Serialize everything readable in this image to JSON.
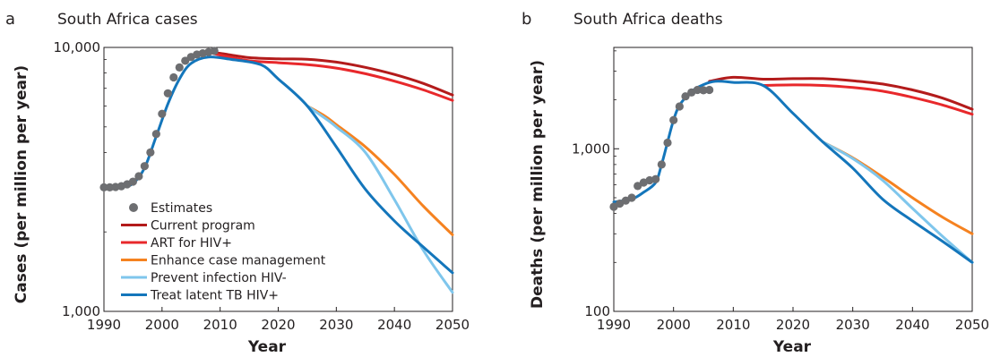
{
  "colors": {
    "estimates": "#6d6e71",
    "current": "#b31b1b",
    "art": "#e8282b",
    "case_mgmt": "#f58220",
    "prevent": "#7fc6ec",
    "latent": "#1476bb"
  },
  "legend": [
    {
      "key": "estimates",
      "label": "Estimates",
      "marker": "dot"
    },
    {
      "key": "current",
      "label": "Current program",
      "marker": "line"
    },
    {
      "key": "art",
      "label": "ART for HIV+",
      "marker": "line"
    },
    {
      "key": "case_mgmt",
      "label": "Enhance case management",
      "marker": "line"
    },
    {
      "key": "prevent",
      "label": "Prevent infection HIV-",
      "marker": "line"
    },
    {
      "key": "latent",
      "label": "Treat latent TB HIV+",
      "marker": "line"
    }
  ],
  "chart_data": [
    {
      "panel": "a",
      "type": "line",
      "title": "South Africa cases",
      "xlabel": "Year",
      "ylabel": "Cases (per million per year)",
      "xlim": [
        1990,
        2050
      ],
      "ylim": [
        1000,
        10000
      ],
      "yscale": "log",
      "xticks": [
        "1990",
        "2000",
        "2010",
        "2020",
        "2030",
        "2040",
        "2050"
      ],
      "yticks": [
        {
          "v": 1000,
          "label": "1,000"
        },
        {
          "v": 10000,
          "label": "10,000"
        }
      ],
      "estimates": {
        "x": [
          1990,
          1991,
          1992,
          1993,
          1994,
          1995,
          1996,
          1997,
          1998,
          1999,
          2000,
          2001,
          2002,
          2003,
          2004,
          2005,
          2006,
          2007,
          2008,
          2009
        ],
        "y": [
          2950,
          2950,
          2960,
          2980,
          3030,
          3100,
          3250,
          3550,
          4000,
          4700,
          5600,
          6700,
          7700,
          8400,
          8900,
          9200,
          9400,
          9500,
          9600,
          9700
        ]
      },
      "series": [
        {
          "key": "current",
          "name": "Current program",
          "x": [
            2008,
            2010,
            2015,
            2020,
            2025,
            2030,
            2035,
            2040,
            2045,
            2050
          ],
          "y": [
            9600,
            9500,
            9150,
            9050,
            9020,
            8800,
            8400,
            7900,
            7300,
            6600
          ]
        },
        {
          "key": "art",
          "name": "ART for HIV+",
          "x": [
            2008,
            2010,
            2015,
            2020,
            2025,
            2030,
            2035,
            2040,
            2045,
            2050
          ],
          "y": [
            9600,
            9350,
            8900,
            8750,
            8600,
            8350,
            7950,
            7450,
            6900,
            6300
          ]
        },
        {
          "key": "case_mgmt",
          "name": "Enhance case management",
          "x": [
            2025,
            2028,
            2030,
            2035,
            2040,
            2045,
            2050
          ],
          "y": [
            6000,
            5500,
            5100,
            4200,
            3300,
            2500,
            1950
          ]
        },
        {
          "key": "prevent",
          "name": "Prevent infection HIV-",
          "x": [
            2025,
            2028,
            2030,
            2035,
            2040,
            2045,
            2050
          ],
          "y": [
            6000,
            5400,
            5000,
            4000,
            2650,
            1700,
            1180
          ]
        },
        {
          "key": "latent",
          "name": "Treat latent TB HIV+",
          "x": [
            1990,
            1993,
            1995,
            1997,
            1999,
            2001,
            2003,
            2005,
            2008,
            2012,
            2017,
            2020,
            2025,
            2030,
            2035,
            2040,
            2045,
            2050
          ],
          "y": [
            2950,
            2960,
            3050,
            3500,
            4600,
            6100,
            7600,
            8700,
            9200,
            9000,
            8600,
            7600,
            6000,
            4200,
            2900,
            2200,
            1750,
            1400
          ]
        }
      ]
    },
    {
      "panel": "b",
      "type": "line",
      "title": "South Africa deaths",
      "xlabel": "Year",
      "ylabel": "Deaths (per million per year)",
      "xlim": [
        1990,
        2050
      ],
      "ylim": [
        100,
        5000
      ],
      "yscale": "log",
      "xticks": [
        "1990",
        "2000",
        "2010",
        "2020",
        "2030",
        "2040",
        "2050"
      ],
      "yticks": [
        {
          "v": 100,
          "label": "100"
        },
        {
          "v": 1000,
          "label": "1,000"
        }
      ],
      "estimates": {
        "x": [
          1990,
          1991,
          1992,
          1993,
          1994,
          1995,
          1996,
          1997,
          1998,
          1999,
          2000,
          2001,
          2002,
          2003,
          2004,
          2005,
          2006
        ],
        "y": [
          440,
          460,
          480,
          500,
          590,
          620,
          640,
          650,
          800,
          1090,
          1500,
          1820,
          2100,
          2220,
          2300,
          2290,
          2300
        ]
      },
      "series": [
        {
          "key": "current",
          "name": "Current program",
          "x": [
            2006,
            2010,
            2015,
            2020,
            2025,
            2030,
            2035,
            2040,
            2045,
            2050
          ],
          "y": [
            2600,
            2750,
            2680,
            2700,
            2700,
            2620,
            2500,
            2300,
            2050,
            1750
          ]
        },
        {
          "key": "art",
          "name": "ART for HIV+",
          "x": [
            2015,
            2020,
            2025,
            2030,
            2035,
            2040,
            2045,
            2050
          ],
          "y": [
            2450,
            2470,
            2450,
            2380,
            2260,
            2070,
            1860,
            1630
          ]
        },
        {
          "key": "case_mgmt",
          "name": "Enhance case management",
          "x": [
            2025,
            2030,
            2035,
            2040,
            2045,
            2050
          ],
          "y": [
            1100,
            880,
            670,
            500,
            380,
            300
          ]
        },
        {
          "key": "prevent",
          "name": "Prevent infection HIV-",
          "x": [
            2025,
            2030,
            2035,
            2040,
            2045,
            2050
          ],
          "y": [
            1100,
            870,
            640,
            430,
            290,
            200
          ]
        },
        {
          "key": "latent",
          "name": "Treat latent TB HIV+",
          "x": [
            1990,
            1993,
            1995,
            1997,
            1998,
            1999,
            2000,
            2001,
            2003,
            2005,
            2007,
            2010,
            2015,
            2020,
            2025,
            2030,
            2035,
            2040,
            2045,
            2050
          ],
          "y": [
            470,
            490,
            540,
            620,
            800,
            1100,
            1500,
            1850,
            2250,
            2480,
            2600,
            2560,
            2450,
            1650,
            1100,
            760,
            490,
            360,
            270,
            200
          ]
        }
      ]
    }
  ]
}
